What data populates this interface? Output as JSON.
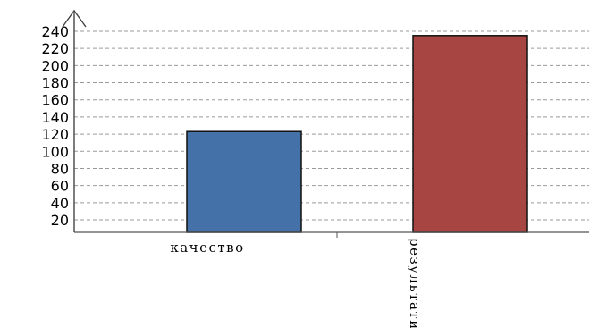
{
  "chart_data": {
    "type": "bar",
    "title": "",
    "xlabel": "",
    "ylabel": "",
    "categories": [
      "качество",
      "результати"
    ],
    "values": [
      123,
      235
    ],
    "colors": [
      "#4472A8",
      "#A64542"
    ],
    "ylim": [
      0,
      250
    ],
    "yticks": [
      20,
      40,
      60,
      80,
      100,
      120,
      140,
      160,
      180,
      200,
      220,
      240
    ],
    "ytick_labels": [
      "20",
      "40",
      "60",
      "80",
      "100",
      "120",
      "140",
      "160",
      "180",
      "200",
      "220",
      "240"
    ],
    "grid": true,
    "grid_style": "dashed",
    "legend": "none"
  }
}
